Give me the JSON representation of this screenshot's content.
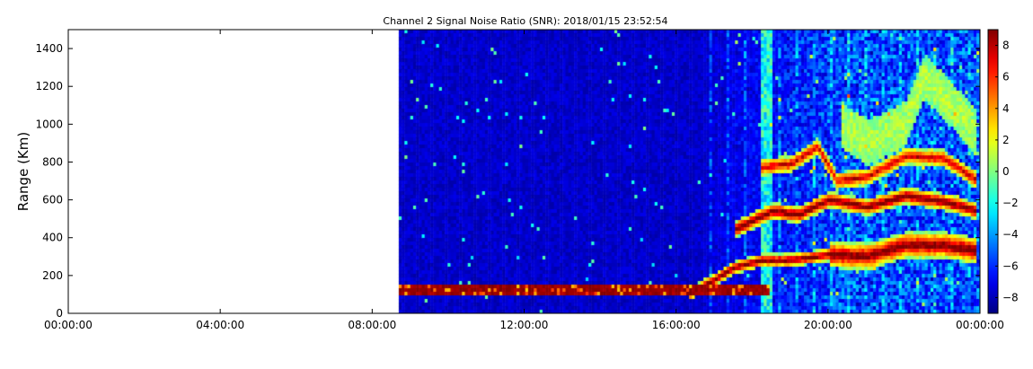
{
  "chart_data": {
    "type": "heatmap",
    "title": "Channel 2 Signal Noise Ratio (SNR): 2018/01/15 23:52:54",
    "xlabel": "",
    "ylabel": "Range (Km)",
    "x_ticks": [
      "00:00:00",
      "04:00:00",
      "08:00:00",
      "12:00:00",
      "16:00:00",
      "20:00:00",
      "00:00:00"
    ],
    "x_range_hours": [
      0,
      24
    ],
    "y_ticks": [
      0,
      200,
      400,
      600,
      800,
      1000,
      1200,
      1400
    ],
    "ylim": [
      0,
      1500
    ],
    "data_start_hour": 8.7,
    "colorbar": {
      "colormap": "jet",
      "ticks": [
        -8,
        -6,
        -4,
        -2,
        0,
        2,
        4,
        6,
        8
      ],
      "range": [
        -9,
        9
      ]
    },
    "features": [
      {
        "name": "near-range band",
        "start_hour": 8.7,
        "end_hour": 18.4,
        "range_km": [
          100,
          150
        ],
        "level_db": 8
      },
      {
        "name": "rising trace 1",
        "points": [
          [
            16.3,
            100
          ],
          [
            17.0,
            180
          ],
          [
            17.5,
            240
          ],
          [
            18.2,
            280
          ],
          [
            19.0,
            280
          ],
          [
            20.0,
            310
          ],
          [
            21.0,
            300
          ],
          [
            22.0,
            360
          ],
          [
            23.0,
            360
          ],
          [
            23.9,
            330
          ]
        ],
        "level_db": 8
      },
      {
        "name": "trace 2",
        "points": [
          [
            17.5,
            440
          ],
          [
            18.5,
            540
          ],
          [
            19.2,
            520
          ],
          [
            20.0,
            600
          ],
          [
            21.0,
            560
          ],
          [
            22.0,
            620
          ],
          [
            23.0,
            590
          ],
          [
            23.9,
            540
          ]
        ],
        "level_db": 8
      },
      {
        "name": "trace 3",
        "points": [
          [
            18.2,
            770
          ],
          [
            19.0,
            790
          ],
          [
            19.7,
            880
          ],
          [
            20.2,
            700
          ],
          [
            21.0,
            720
          ],
          [
            22.0,
            830
          ],
          [
            23.0,
            820
          ],
          [
            23.9,
            700
          ]
        ],
        "level_db": 6
      },
      {
        "name": "upper diffuse",
        "points": [
          [
            20.3,
            1000
          ],
          [
            21.0,
            900
          ],
          [
            22.0,
            1000
          ],
          [
            22.5,
            1250
          ],
          [
            23.0,
            1150
          ],
          [
            23.9,
            950
          ]
        ],
        "level_db": 1
      }
    ]
  }
}
